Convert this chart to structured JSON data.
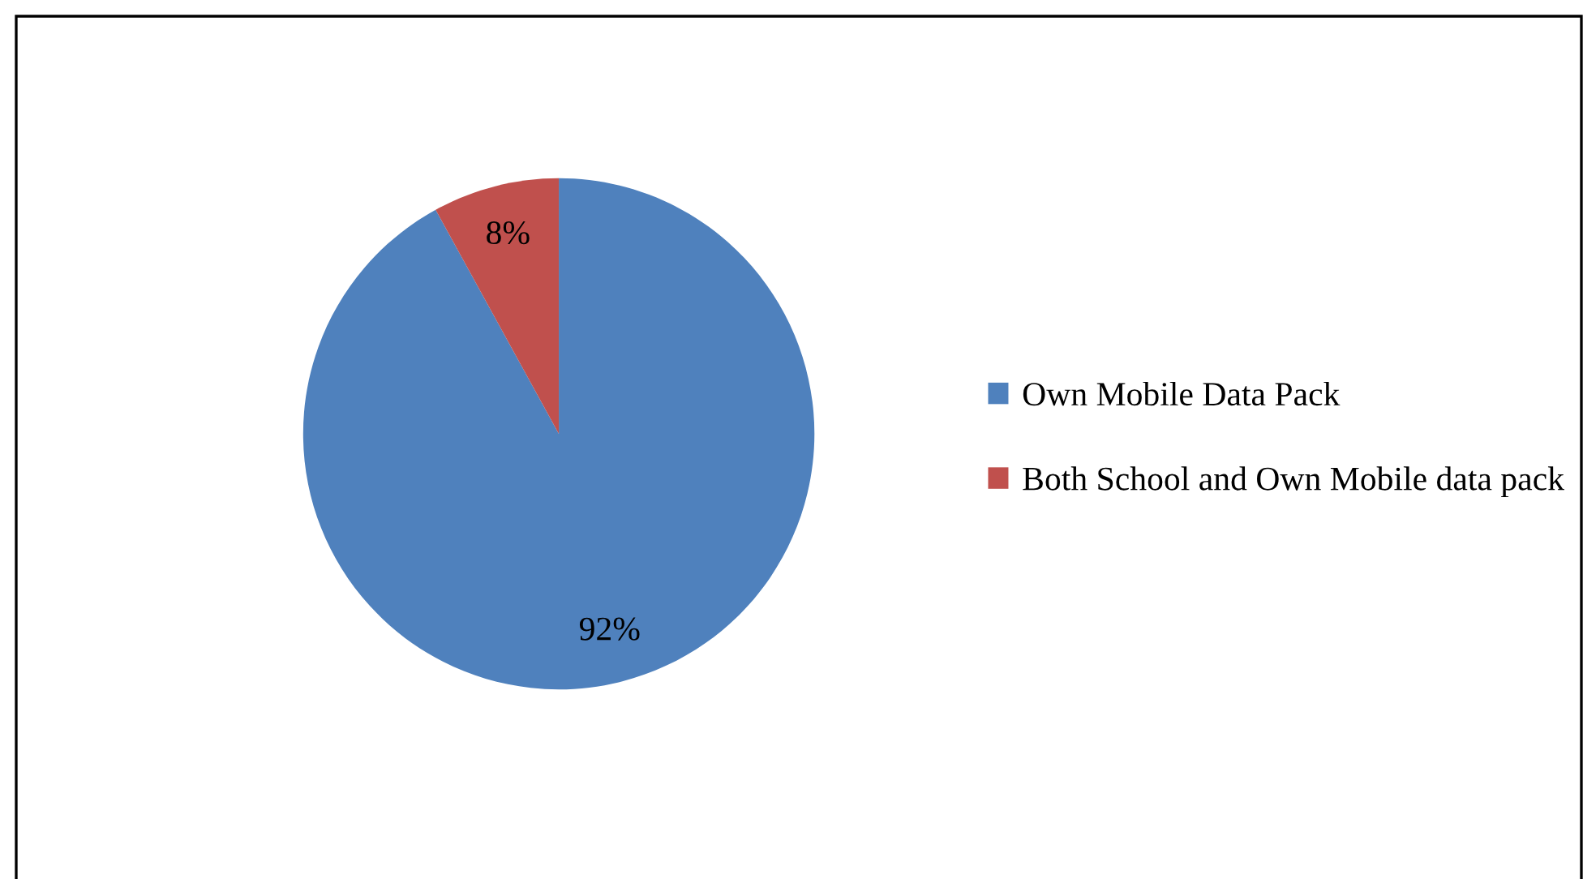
{
  "chart_data": {
    "type": "pie",
    "categories": [
      "Own Mobile Data Pack",
      "Both School and Own Mobile data pack"
    ],
    "values": [
      92,
      8
    ],
    "colors": [
      "#4f81bd",
      "#c0504d"
    ],
    "value_labels": [
      "92%",
      "8%"
    ],
    "legend": "right"
  }
}
